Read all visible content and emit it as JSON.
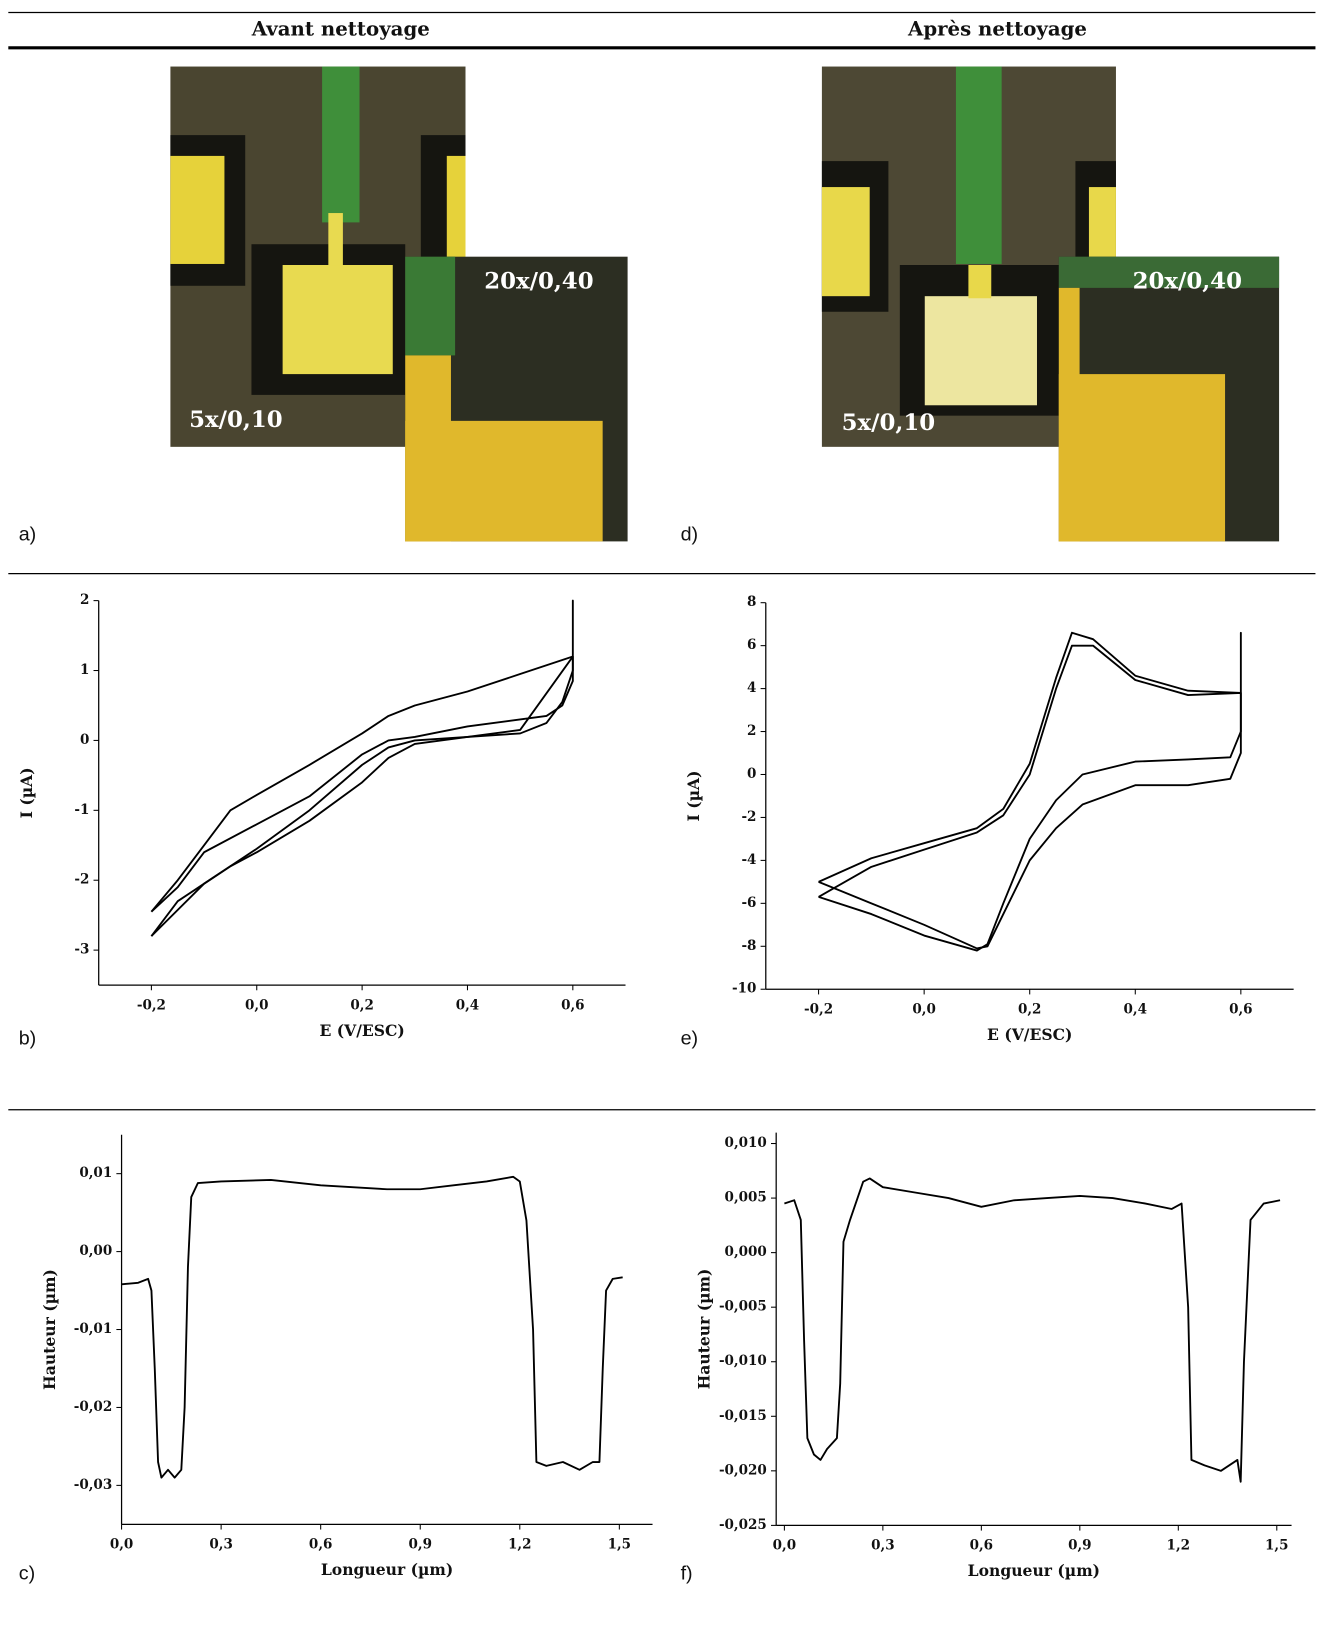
{
  "header": {
    "left": "Avant nettoyage",
    "right": "Après nettoyage"
  },
  "micrographs": [
    {
      "low_mag": "5x/0,10",
      "high_mag": "20x/0,40"
    },
    {
      "low_mag": "5x/0,10",
      "high_mag": "20x/0,40"
    }
  ],
  "panel_labels": [
    "a)",
    "b)",
    "c)",
    "d)",
    "e)",
    "f)"
  ],
  "chart_data": [
    {
      "type": "line",
      "xlabel": "E (V/ESC)",
      "ylabel": "I (µA)",
      "xlim": [
        -0.3,
        0.7
      ],
      "ylim": [
        -3.5,
        2
      ],
      "xticks": [
        {
          "value": -0.2,
          "label": "-0,2"
        },
        {
          "value": 0,
          "label": "0,0"
        },
        {
          "value": 0.2,
          "label": "0,2"
        },
        {
          "value": 0.4,
          "label": "0,4"
        },
        {
          "value": 0.6,
          "label": "0,6"
        }
      ],
      "yticks": [
        2,
        1,
        0,
        -1,
        -2,
        -3
      ],
      "series": [
        {
          "color": "#000000",
          "x": [
            -0.2,
            -0.15,
            -0.1,
            -0.05,
            0,
            0.1,
            0.2,
            0.25,
            0.3,
            0.4,
            0.5,
            0.6,
            0.6,
            0.6,
            0.58,
            0.55,
            0.5,
            0.4,
            0.3,
            0.25,
            0.2,
            0.1,
            0,
            -0.1,
            -0.2
          ],
          "values": [
            -2.45,
            -2.0,
            -1.5,
            -1.0,
            -0.78,
            -0.35,
            0.1,
            0.35,
            0.5,
            0.7,
            0.95,
            1.2,
            2.0,
            1.0,
            0.55,
            0.25,
            0.1,
            0.05,
            0.0,
            -0.1,
            -0.35,
            -1.0,
            -1.55,
            -2.05,
            -2.8
          ]
        },
        {
          "color": "#000000",
          "x": [
            -0.2,
            -0.15,
            -0.1,
            -0.05,
            0,
            0.1,
            0.2,
            0.25,
            0.3,
            0.4,
            0.5,
            0.6,
            0.6,
            0.58,
            0.55,
            0.5,
            0.4,
            0.3,
            0.25,
            0.2,
            0.1,
            0,
            -0.1,
            -0.15,
            -0.2
          ],
          "values": [
            -2.8,
            -2.3,
            -2.05,
            -1.8,
            -1.6,
            -1.15,
            -0.6,
            -0.25,
            -0.05,
            0.05,
            0.15,
            1.2,
            0.85,
            0.5,
            0.35,
            0.3,
            0.2,
            0.05,
            0.0,
            -0.2,
            -0.8,
            -1.2,
            -1.6,
            -2.1,
            -2.45
          ]
        }
      ]
    },
    {
      "type": "line",
      "xlabel": "Longueur (µm)",
      "ylabel": "Hauteur (µm)",
      "xlim": [
        0,
        1.6
      ],
      "ylim": [
        -0.035,
        0.015
      ],
      "xticks": [
        {
          "value": 0,
          "label": "0,0"
        },
        {
          "value": 0.3,
          "label": "0,3"
        },
        {
          "value": 0.6,
          "label": "0,6"
        },
        {
          "value": 0.9,
          "label": "0,9"
        },
        {
          "value": 1.2,
          "label": "1,2"
        },
        {
          "value": 1.5,
          "label": "1,5"
        }
      ],
      "yticks": [
        {
          "value": 0.01,
          "label": "0,01"
        },
        {
          "value": 0,
          "label": "0,00"
        },
        {
          "value": -0.01,
          "label": "-0,01"
        },
        {
          "value": -0.02,
          "label": "-0,02"
        },
        {
          "value": -0.03,
          "label": "-0,03"
        }
      ],
      "series": [
        {
          "color": "#000000",
          "x": [
            0,
            0.05,
            0.08,
            0.09,
            0.1,
            0.11,
            0.12,
            0.14,
            0.16,
            0.18,
            0.19,
            0.2,
            0.21,
            0.23,
            0.3,
            0.45,
            0.6,
            0.8,
            0.9,
            1.0,
            1.1,
            1.18,
            1.2,
            1.22,
            1.24,
            1.25,
            1.28,
            1.33,
            1.38,
            1.42,
            1.44,
            1.45,
            1.46,
            1.48,
            1.51
          ],
          "values": [
            -0.0042,
            -0.004,
            -0.0035,
            -0.005,
            -0.015,
            -0.027,
            -0.029,
            -0.028,
            -0.029,
            -0.028,
            -0.02,
            -0.002,
            0.007,
            0.0088,
            0.009,
            0.0092,
            0.0085,
            0.008,
            0.008,
            0.0085,
            0.009,
            0.0096,
            0.009,
            0.004,
            -0.01,
            -0.027,
            -0.0275,
            -0.027,
            -0.028,
            -0.027,
            -0.027,
            -0.015,
            -0.005,
            -0.0035,
            -0.0033
          ]
        }
      ]
    },
    {
      "type": "line",
      "xlabel": "E (V/ESC)",
      "ylabel": "I (µA)",
      "xlim": [
        -0.3,
        0.7
      ],
      "ylim": [
        -10,
        8
      ],
      "xticks": [
        {
          "value": -0.2,
          "label": "-0,2"
        },
        {
          "value": 0,
          "label": "0,0"
        },
        {
          "value": 0.2,
          "label": "0,2"
        },
        {
          "value": 0.4,
          "label": "0,4"
        },
        {
          "value": 0.6,
          "label": "0,6"
        }
      ],
      "yticks": [
        8,
        6,
        4,
        2,
        0,
        -2,
        -4,
        -6,
        -8,
        -10
      ],
      "series": [
        {
          "color": "#000000",
          "x": [
            -0.2,
            -0.1,
            0,
            0.1,
            0.15,
            0.2,
            0.25,
            0.28,
            0.32,
            0.4,
            0.5,
            0.6,
            0.6,
            0.6,
            0.58,
            0.5,
            0.4,
            0.3,
            0.25,
            0.2,
            0.15,
            0.12,
            0.1,
            0,
            -0.1,
            -0.2
          ],
          "values": [
            -5.0,
            -3.9,
            -3.2,
            -2.5,
            -1.6,
            0.5,
            4.5,
            6.6,
            6.3,
            4.6,
            3.9,
            3.8,
            6.6,
            2.0,
            0.8,
            0.7,
            0.6,
            0.0,
            -1.2,
            -3.0,
            -6.0,
            -7.9,
            -8.2,
            -7.5,
            -6.5,
            -5.7
          ]
        },
        {
          "color": "#000000",
          "x": [
            -0.2,
            -0.1,
            0,
            0.1,
            0.15,
            0.2,
            0.25,
            0.28,
            0.32,
            0.4,
            0.5,
            0.6,
            0.6,
            0.58,
            0.5,
            0.4,
            0.3,
            0.25,
            0.2,
            0.15,
            0.12,
            0.1,
            0,
            -0.1,
            -0.2
          ],
          "values": [
            -5.7,
            -4.3,
            -3.5,
            -2.7,
            -1.9,
            0.0,
            4.0,
            6.0,
            6.0,
            4.4,
            3.7,
            3.8,
            1.0,
            -0.2,
            -0.5,
            -0.5,
            -1.4,
            -2.5,
            -4.0,
            -6.5,
            -8.0,
            -8.1,
            -7.0,
            -6.0,
            -5.0
          ]
        }
      ]
    },
    {
      "type": "line",
      "xlabel": "Longueur (µm)",
      "ylabel": "Hauteur (µm)",
      "xlim": [
        -0.025,
        1.545
      ],
      "ylim": [
        -0.025,
        0.011
      ],
      "xticks": [
        {
          "value": 0,
          "label": "0,0"
        },
        {
          "value": 0.3,
          "label": "0,3"
        },
        {
          "value": 0.6,
          "label": "0,6"
        },
        {
          "value": 0.9,
          "label": "0,9"
        },
        {
          "value": 1.2,
          "label": "1,2"
        },
        {
          "value": 1.5,
          "label": "1,5"
        }
      ],
      "yticks": [
        {
          "value": 0.01,
          "label": "0,010"
        },
        {
          "value": 0.005,
          "label": "0,005"
        },
        {
          "value": 0,
          "label": "0,000"
        },
        {
          "value": -0.005,
          "label": "-0,005"
        },
        {
          "value": -0.01,
          "label": "-0,010"
        },
        {
          "value": -0.015,
          "label": "-0,015"
        },
        {
          "value": -0.02,
          "label": "-0,020"
        },
        {
          "value": -0.025,
          "label": "-0,025"
        }
      ],
      "series": [
        {
          "color": "#000000",
          "x": [
            0,
            0.03,
            0.05,
            0.06,
            0.07,
            0.09,
            0.11,
            0.13,
            0.16,
            0.17,
            0.18,
            0.2,
            0.24,
            0.26,
            0.3,
            0.4,
            0.5,
            0.6,
            0.7,
            0.8,
            0.9,
            1.0,
            1.1,
            1.18,
            1.21,
            1.23,
            1.24,
            1.28,
            1.33,
            1.38,
            1.39,
            1.4,
            1.42,
            1.46,
            1.51
          ],
          "values": [
            0.0045,
            0.0048,
            0.003,
            -0.008,
            -0.017,
            -0.0185,
            -0.019,
            -0.018,
            -0.017,
            -0.012,
            0.001,
            0.003,
            0.0065,
            0.0068,
            0.006,
            0.0055,
            0.005,
            0.0042,
            0.0048,
            0.005,
            0.0052,
            0.005,
            0.0045,
            0.004,
            0.0045,
            -0.005,
            -0.019,
            -0.0195,
            -0.02,
            -0.019,
            -0.021,
            -0.01,
            0.003,
            0.0045,
            0.0048
          ]
        }
      ]
    }
  ]
}
